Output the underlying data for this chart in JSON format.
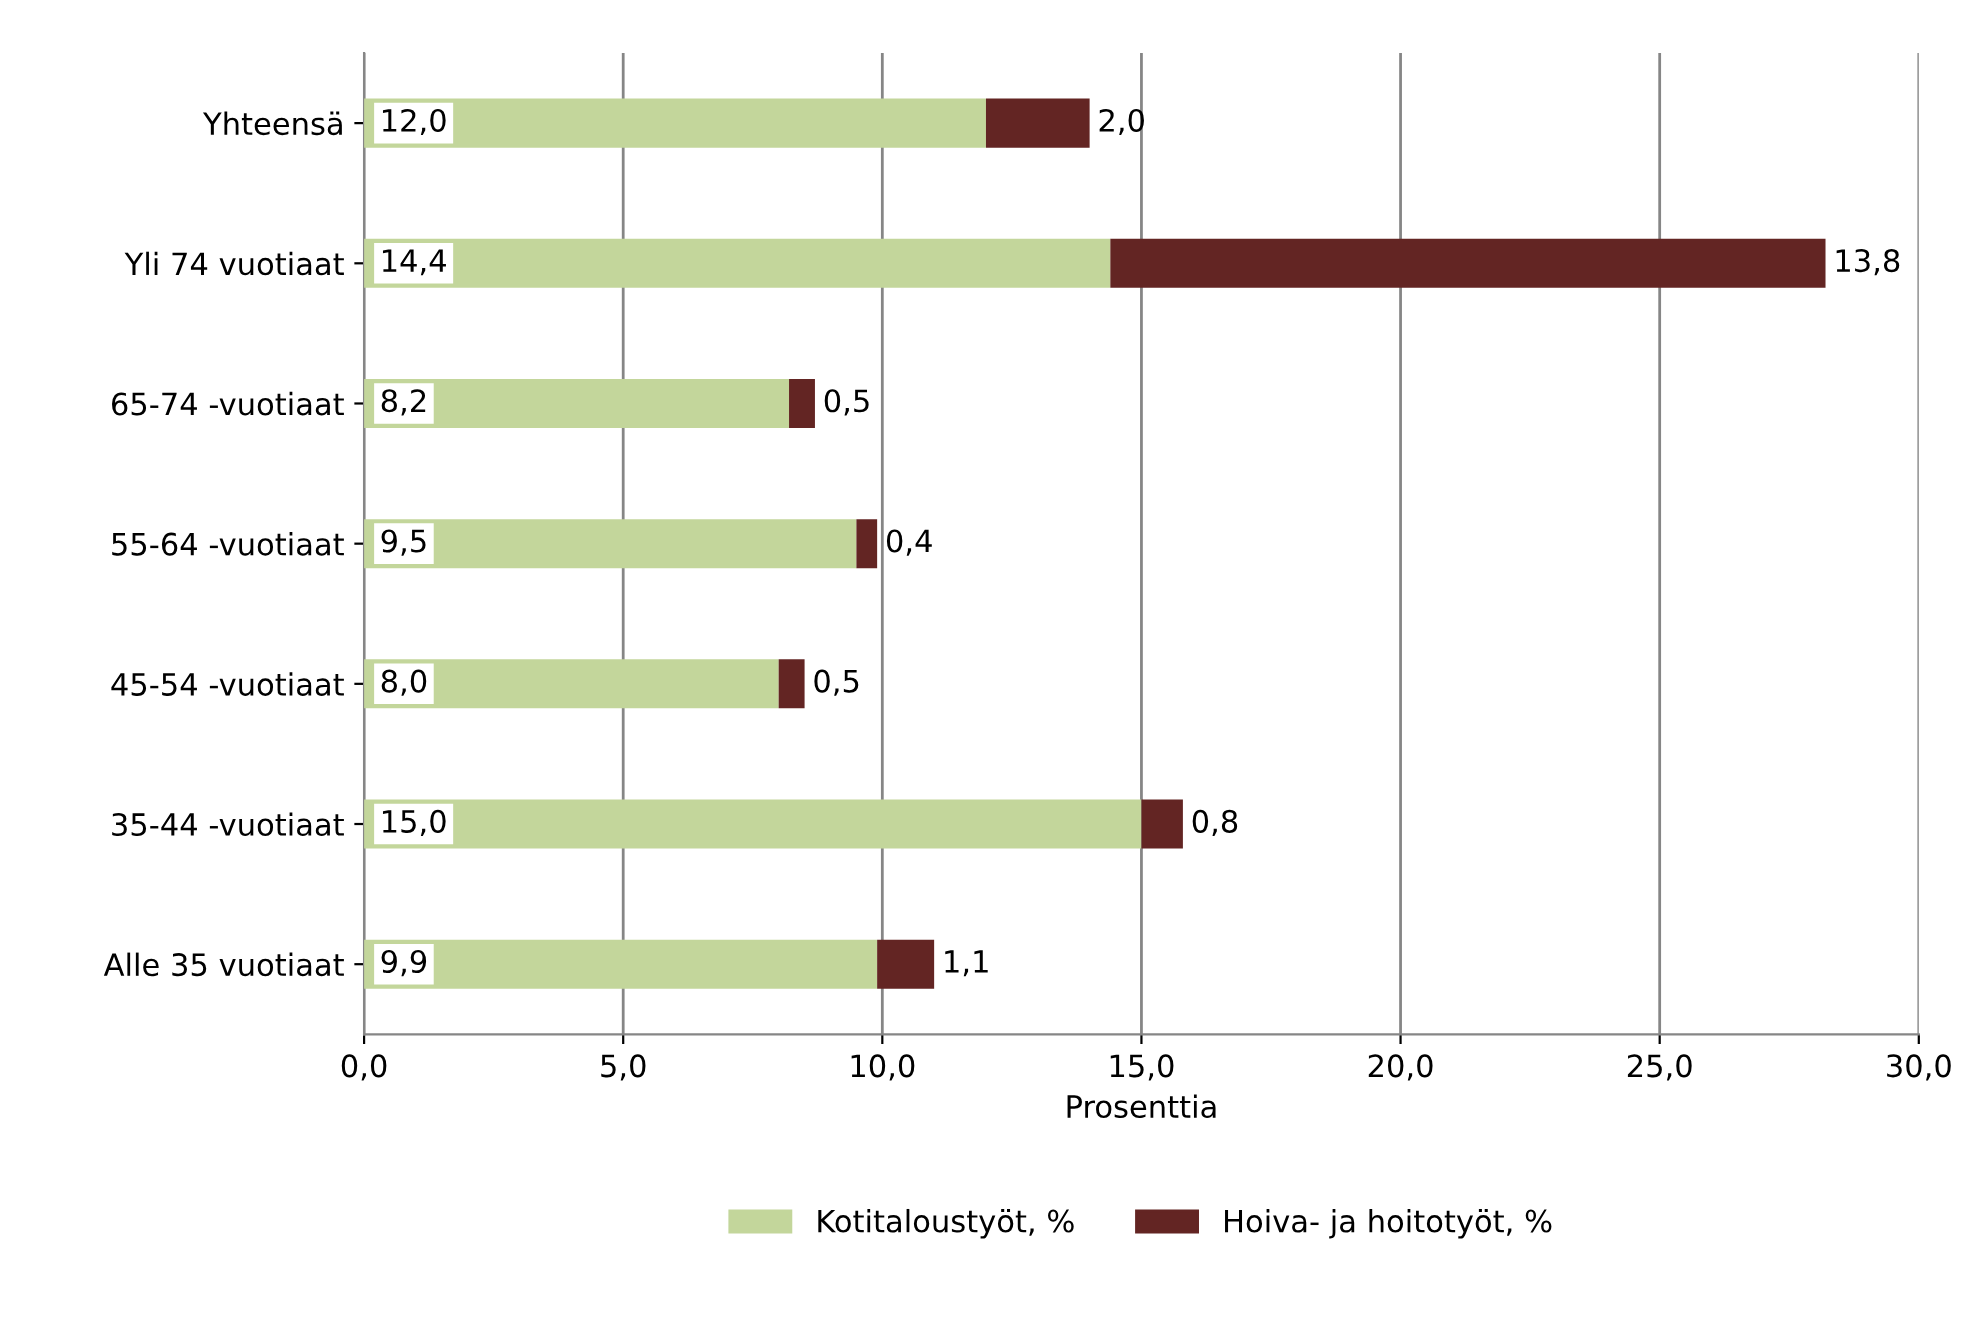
{
  "chart_data": {
    "type": "bar",
    "orientation": "horizontal",
    "stacked": true,
    "categories": [
      "Yhteensä",
      "Yli 74 vuotiaat",
      "65-74 -vuotiaat",
      "55-64 -vuotiaat",
      "45-54 -vuotiaat",
      "35-44 -vuotiaat",
      "Alle 35 vuotiaat"
    ],
    "series": [
      {
        "name": "Kotitaloustyöt, %",
        "color": "#c3d69b",
        "values": [
          12.0,
          14.4,
          8.2,
          9.5,
          8.0,
          15.0,
          9.9
        ],
        "value_labels": [
          "12,0",
          "14,4",
          "8,2",
          "9,5",
          "8,0",
          "15,0",
          "9,9"
        ]
      },
      {
        "name": "Hoiva- ja hoitotyöt, %",
        "color": "#632523",
        "values": [
          2.0,
          13.8,
          0.5,
          0.4,
          0.5,
          0.8,
          1.1
        ],
        "value_labels": [
          "2,0",
          "13,8",
          "0,5",
          "0,4",
          "0,5",
          "0,8",
          "1,1"
        ]
      }
    ],
    "xlim": [
      0,
      30
    ],
    "xticks": [
      {
        "value": 0,
        "label": "0,0"
      },
      {
        "value": 5,
        "label": "5,0"
      },
      {
        "value": 10,
        "label": "10,0"
      },
      {
        "value": 15,
        "label": "15,0"
      },
      {
        "value": 20,
        "label": "20,0"
      },
      {
        "value": 25,
        "label": "25,0"
      },
      {
        "value": 30,
        "label": "30,0"
      }
    ],
    "xlabel": "Prosenttia",
    "grid": "x",
    "legend": "bottom"
  }
}
